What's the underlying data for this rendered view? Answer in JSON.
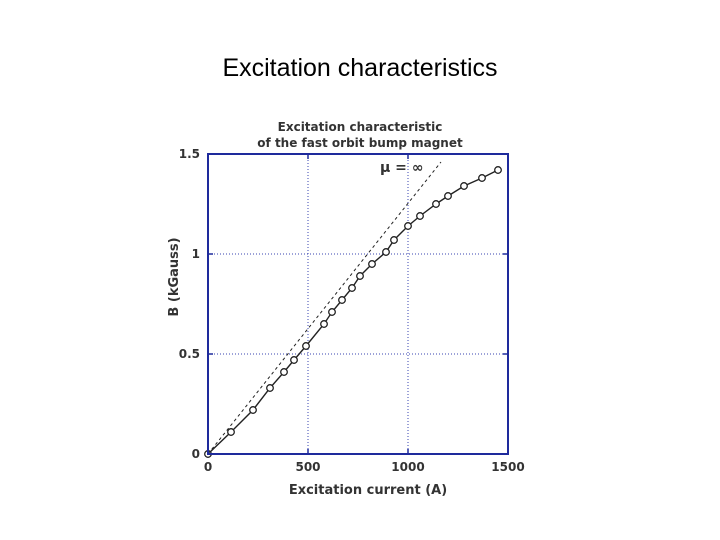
{
  "slide": {
    "title": "Excitation characteristics"
  },
  "chart_data": {
    "type": "line",
    "title_lines": [
      "Excitation characteristic",
      "of the fast orbit bump magnet"
    ],
    "xlabel": "Excitation current (A)",
    "ylabel": "B (kGauss)",
    "xlim": [
      0,
      1500
    ],
    "ylim": [
      0,
      1.5
    ],
    "x_ticks": [
      0,
      500,
      1000,
      1500
    ],
    "x_tick_labels": [
      "0",
      "500",
      "1000",
      "1500"
    ],
    "y_ticks": [
      0,
      0.5,
      1,
      1.5
    ],
    "y_tick_labels": [
      "0",
      "0.5",
      "1",
      "1.5"
    ],
    "grid": true,
    "annotation": {
      "text": "μ = ∞",
      "x": 1050,
      "y": 1.44
    },
    "series": [
      {
        "style": "line-markers",
        "x": [
          0,
          115,
          225,
          310,
          380,
          430,
          490,
          580,
          620,
          670,
          720,
          760,
          820,
          890,
          930,
          1000,
          1060,
          1140,
          1200,
          1280,
          1370,
          1450
        ],
        "y": [
          0,
          0.11,
          0.22,
          0.33,
          0.41,
          0.47,
          0.54,
          0.65,
          0.71,
          0.77,
          0.83,
          0.89,
          0.95,
          1.01,
          1.07,
          1.14,
          1.19,
          1.25,
          1.29,
          1.34,
          1.38,
          1.42
        ]
      },
      {
        "style": "dashed",
        "x": [
          0,
          1165
        ],
        "y": [
          0,
          1.46
        ]
      }
    ],
    "colors": {
      "axis": "#1e2a9c",
      "grid": "#3a46b0",
      "data": "#222222",
      "text": "#333333"
    }
  }
}
